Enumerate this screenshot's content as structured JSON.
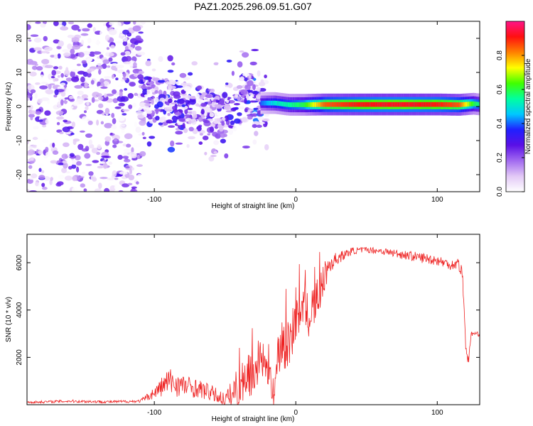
{
  "figure": {
    "title": "PAZ1.2025.296.09.51.G07"
  },
  "chart_data": [
    {
      "type": "heatmap",
      "name": "spectrogram",
      "xlabel": "Height of straight line (km)",
      "ylabel": "Frequency (Hz)",
      "xlim": [
        -190,
        130
      ],
      "ylim": [
        -25,
        25
      ],
      "xticks": [
        -100,
        0,
        100
      ],
      "yticks": [
        -20,
        -10,
        0,
        10,
        20
      ],
      "xtick_labels": [
        "-100",
        "0",
        "100"
      ],
      "ytick_labels": [
        "-20",
        "-10",
        "0",
        "10",
        "20"
      ],
      "colorbar": {
        "label": "Normalized spectral amplitude",
        "range": [
          0.0,
          1.0
        ],
        "ticks": [
          0.0,
          0.2,
          0.4,
          0.6,
          0.8
        ],
        "tick_labels": [
          "0.0",
          "0.2",
          "0.4",
          "0.6",
          "0.8"
        ],
        "colormap": [
          "#ffffff",
          "#e2c8f6",
          "#a26af0",
          "#5a10e6",
          "#2020ff",
          "#00c8ff",
          "#00ffa0",
          "#40ff00",
          "#ffff00",
          "#ff8000",
          "#ff1010",
          "#ff1488"
        ]
      },
      "ridge": {
        "description_values": "dominant frequency near 0 Hz above about -25 km",
        "x": [
          -110,
          -90,
          -70,
          -50,
          -35,
          -25,
          -15,
          -5,
          5,
          20,
          40,
          60,
          80,
          100,
          115,
          125,
          130
        ],
        "frequency": [
          2,
          1,
          -1,
          -2,
          3,
          1,
          1,
          0.5,
          0.5,
          0.6,
          0.6,
          0.6,
          0.6,
          0.6,
          0.5,
          0.8,
          0.6
        ],
        "amplitude": [
          0.3,
          0.35,
          0.3,
          0.3,
          0.35,
          0.4,
          0.5,
          0.55,
          0.6,
          0.85,
          0.9,
          0.92,
          0.92,
          0.9,
          0.85,
          0.6,
          0.55
        ]
      }
    },
    {
      "type": "line",
      "name": "snr",
      "xlabel": "Height of straight line (km)",
      "ylabel": "SNR (10 * v/v)",
      "xlim": [
        -190,
        130
      ],
      "ylim": [
        0,
        7200
      ],
      "xticks": [
        -100,
        0,
        100
      ],
      "yticks": [
        2000,
        4000,
        6000
      ],
      "xtick_labels": [
        "-100",
        "0",
        "100"
      ],
      "ytick_labels": [
        "2000",
        "4000",
        "6000"
      ],
      "color": "#ee2222",
      "x": [
        -190,
        -160,
        -130,
        -110,
        -100,
        -90,
        -80,
        -70,
        -60,
        -50,
        -45,
        -40,
        -35,
        -30,
        -25,
        -20,
        -15,
        -12,
        -8,
        -5,
        0,
        5,
        10,
        15,
        20,
        25,
        30,
        40,
        50,
        60,
        70,
        80,
        90,
        100,
        110,
        115,
        118,
        120,
        122,
        124,
        126,
        128,
        130
      ],
      "y": [
        100,
        150,
        120,
        150,
        500,
        1000,
        800,
        700,
        500,
        200,
        400,
        900,
        1300,
        1500,
        1900,
        1600,
        600,
        2500,
        2800,
        2600,
        3800,
        4300,
        3800,
        4500,
        5500,
        6000,
        6200,
        6500,
        6550,
        6500,
        6400,
        6300,
        6200,
        6100,
        5900,
        6000,
        5400,
        2600,
        1800,
        3000,
        3000,
        3000,
        2950
      ],
      "noise": [
        50,
        60,
        60,
        60,
        250,
        600,
        500,
        400,
        350,
        300,
        700,
        1100,
        1100,
        1100,
        1100,
        900,
        800,
        1300,
        1500,
        1200,
        1100,
        1100,
        1100,
        1000,
        800,
        400,
        250,
        150,
        120,
        150,
        180,
        200,
        220,
        220,
        220,
        250,
        400,
        300,
        200,
        100,
        80,
        80,
        80
      ]
    }
  ]
}
